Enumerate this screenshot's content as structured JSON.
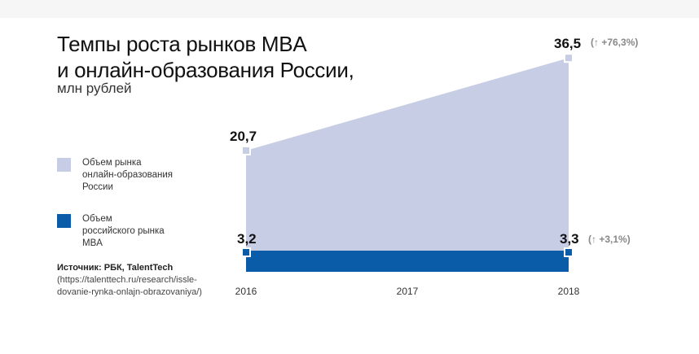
{
  "title": "Темпы роста рынков MBA\nи онлайн-образования России,",
  "subtitle": "млн рублей",
  "legend": [
    {
      "label": "Объем рынка\nонлайн-образования\nРоссии",
      "color": "#c8cde6"
    },
    {
      "label": "Объем\nроссийского рынка\nMBA",
      "color": "#0a5ba8"
    }
  ],
  "source": {
    "label": "Источник: РБК, TalentTech",
    "url": "(https://talenttech.ru/research/issle-dovanie-rynka-onlajn-obrazovaniya/)"
  },
  "chart_data": {
    "type": "area",
    "x": [
      2016,
      2018
    ],
    "x_ticks": [
      "2016",
      "2017",
      "2018"
    ],
    "series": [
      {
        "name": "Объем рынка онлайн-образования России",
        "color": "#c8cde6",
        "values": [
          20.7,
          36.5
        ],
        "value_labels": [
          "20,7",
          "36,5"
        ],
        "change_label": "+76,3%"
      },
      {
        "name": "Объем российского рынка MBA",
        "color": "#0a5ba8",
        "values": [
          3.2,
          3.3
        ],
        "value_labels": [
          "3,2",
          "3,3"
        ],
        "change_label": "+3,1%"
      }
    ],
    "change_arrow": "↑",
    "grid": false
  }
}
